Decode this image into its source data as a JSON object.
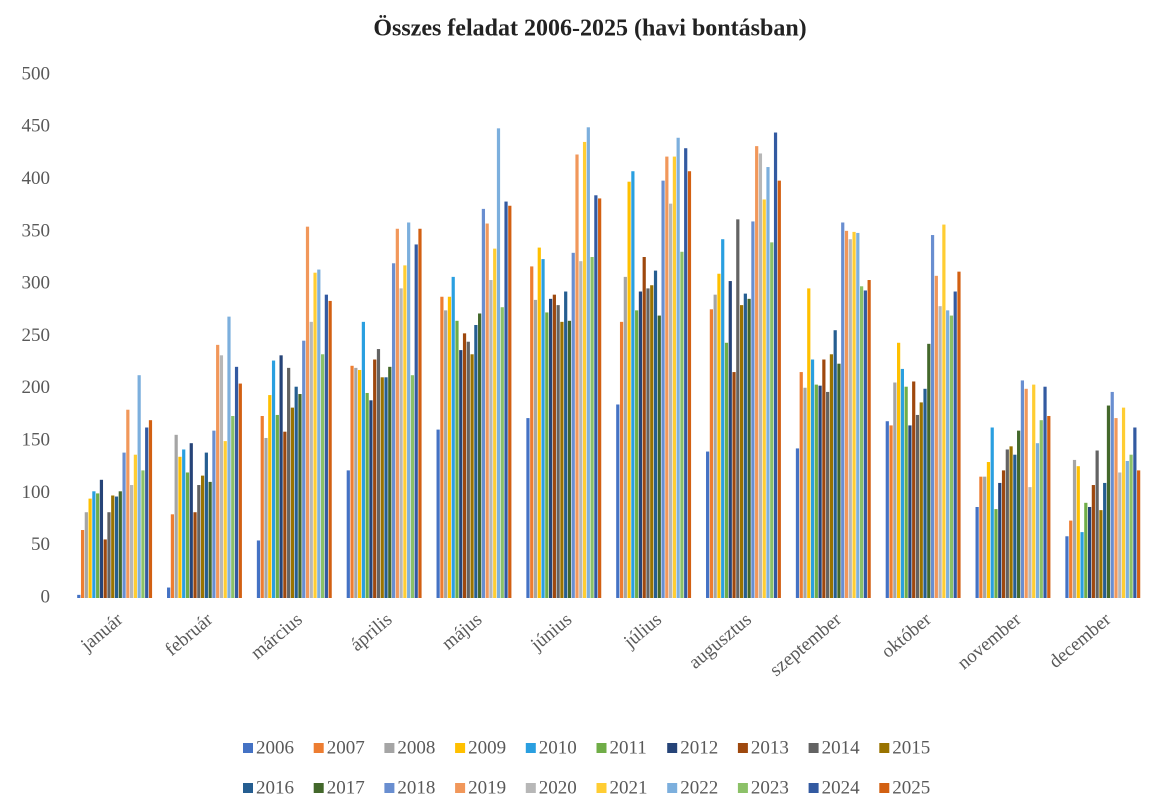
{
  "chart_data": {
    "type": "bar",
    "title": "Összes feladat 2006-2025 (havi bontásban)",
    "categories": [
      "január",
      "február",
      "március",
      "április",
      "május",
      "június",
      "július",
      "augusztus",
      "szeptember",
      "október",
      "november",
      "december"
    ],
    "ylim": [
      0,
      500
    ],
    "yticks": [
      0,
      50,
      100,
      150,
      200,
      250,
      300,
      350,
      400,
      450,
      500
    ],
    "grid": false,
    "legend": "bottom",
    "series": [
      {
        "name": "2006",
        "color": "#4472c4",
        "values": [
          3,
          10,
          55,
          122,
          161,
          172,
          185,
          140,
          143,
          169,
          87,
          59
        ]
      },
      {
        "name": "2007",
        "color": "#ed7d31",
        "values": [
          65,
          80,
          174,
          222,
          288,
          317,
          264,
          276,
          216,
          165,
          116,
          74
        ]
      },
      {
        "name": "2008",
        "color": "#a5a5a5",
        "values": [
          82,
          156,
          153,
          220,
          275,
          285,
          307,
          290,
          201,
          206,
          116,
          132
        ]
      },
      {
        "name": "2009",
        "color": "#ffc000",
        "values": [
          95,
          135,
          194,
          218,
          288,
          335,
          398,
          310,
          296,
          244,
          130,
          126
        ]
      },
      {
        "name": "2010",
        "color": "#2a9fe0",
        "values": [
          102,
          142,
          227,
          264,
          307,
          324,
          408,
          343,
          228,
          219,
          163,
          63
        ]
      },
      {
        "name": "2011",
        "color": "#70ad47",
        "values": [
          100,
          120,
          175,
          196,
          265,
          273,
          275,
          244,
          204,
          202,
          85,
          91
        ]
      },
      {
        "name": "2012",
        "color": "#264478",
        "values": [
          113,
          148,
          232,
          189,
          237,
          286,
          293,
          303,
          203,
          165,
          110,
          87
        ]
      },
      {
        "name": "2013",
        "color": "#9e480e",
        "values": [
          56,
          82,
          159,
          228,
          253,
          290,
          326,
          216,
          228,
          207,
          122,
          108
        ]
      },
      {
        "name": "2014",
        "color": "#636363",
        "values": [
          82,
          108,
          220,
          238,
          245,
          280,
          296,
          362,
          197,
          175,
          142,
          141
        ]
      },
      {
        "name": "2015",
        "color": "#997300",
        "values": [
          98,
          117,
          182,
          211,
          233,
          264,
          299,
          280,
          233,
          187,
          145,
          84
        ]
      },
      {
        "name": "2016",
        "color": "#255e91",
        "values": [
          97,
          139,
          202,
          211,
          261,
          293,
          313,
          291,
          256,
          200,
          137,
          110
        ]
      },
      {
        "name": "2017",
        "color": "#43682b",
        "values": [
          102,
          111,
          195,
          221,
          272,
          265,
          270,
          286,
          224,
          243,
          160,
          184
        ]
      },
      {
        "name": "2018",
        "color": "#698ed0",
        "values": [
          139,
          160,
          246,
          320,
          372,
          330,
          399,
          360,
          359,
          347,
          208,
          197
        ]
      },
      {
        "name": "2019",
        "color": "#f1975a",
        "values": [
          180,
          242,
          355,
          353,
          358,
          424,
          422,
          432,
          351,
          308,
          200,
          172
        ]
      },
      {
        "name": "2020",
        "color": "#b7b7b7",
        "values": [
          108,
          232,
          264,
          296,
          304,
          322,
          377,
          425,
          343,
          279,
          106,
          120
        ]
      },
      {
        "name": "2021",
        "color": "#ffcd33",
        "values": [
          137,
          150,
          311,
          318,
          334,
          436,
          422,
          381,
          350,
          357,
          204,
          182
        ]
      },
      {
        "name": "2022",
        "color": "#7cafdd",
        "values": [
          213,
          269,
          314,
          359,
          449,
          450,
          440,
          412,
          349,
          275,
          148,
          131
        ]
      },
      {
        "name": "2023",
        "color": "#8cc168",
        "values": [
          122,
          174,
          233,
          213,
          278,
          326,
          331,
          340,
          298,
          270,
          170,
          137
        ]
      },
      {
        "name": "2024",
        "color": "#335aa1",
        "values": [
          163,
          221,
          290,
          338,
          379,
          385,
          430,
          445,
          294,
          293,
          202,
          163
        ]
      },
      {
        "name": "2025",
        "color": "#d26012",
        "values": [
          170,
          205,
          284,
          353,
          375,
          382,
          408,
          399,
          304,
          312,
          174,
          122
        ]
      }
    ]
  }
}
